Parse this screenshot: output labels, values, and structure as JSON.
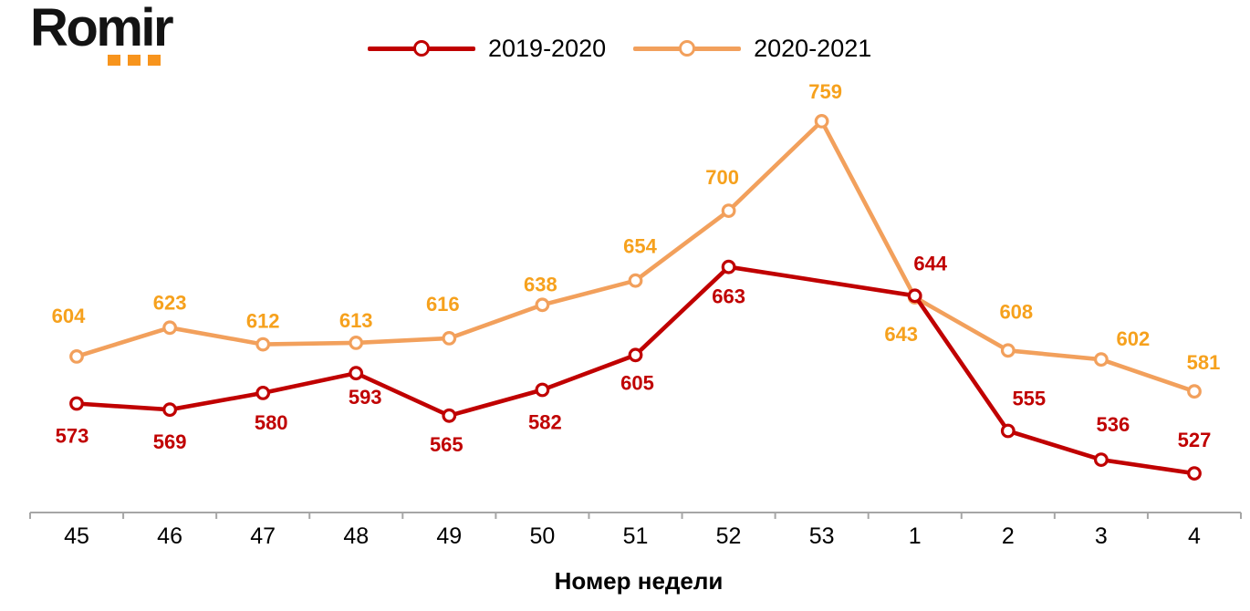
{
  "logo": {
    "text": "Romir",
    "dots_color": "#F7941D"
  },
  "legend": {
    "position": "top-center",
    "items": [
      {
        "label": "2019-2020",
        "color": "#C00000"
      },
      {
        "label": "2020-2021",
        "color": "#F2A05C"
      }
    ]
  },
  "chart_data": {
    "type": "line",
    "title": "",
    "xlabel": "Номер недели",
    "ylabel": "",
    "categories": [
      "45",
      "46",
      "47",
      "48",
      "49",
      "50",
      "51",
      "52",
      "53",
      "1",
      "2",
      "3",
      "4"
    ],
    "series": [
      {
        "name": "2019-2020",
        "color": "#C00000",
        "label_color": "#C00000",
        "marker": "open-circle",
        "values": [
          573,
          569,
          580,
          593,
          565,
          582,
          605,
          663,
          null,
          644,
          555,
          536,
          527
        ],
        "label_offsets_dx": [
          -5,
          0,
          9,
          10,
          -3,
          3,
          2,
          0,
          null,
          17,
          23,
          13,
          0
        ],
        "label_offsets_dy": [
          35,
          35,
          32,
          26,
          31,
          35,
          30,
          32,
          null,
          -36,
          -36,
          -39,
          -37
        ]
      },
      {
        "name": "2020-2021",
        "color": "#F2A05C",
        "label_color": "#F6A11D",
        "marker": "open-circle",
        "values": [
          604,
          623,
          612,
          613,
          616,
          638,
          654,
          700,
          759,
          643,
          608,
          602,
          581
        ],
        "label_offsets_dx": [
          -9,
          0,
          0,
          0,
          -7,
          -2,
          5,
          -7,
          4,
          -15,
          9,
          35,
          10
        ],
        "label_offsets_dy": [
          -45,
          -28,
          -26,
          -25,
          -38,
          -23,
          -38,
          -37,
          -33,
          40,
          -43,
          -23,
          -32
        ]
      }
    ],
    "ylim": [
      500,
      780
    ],
    "grid": false,
    "legend_position": "top-center",
    "axis_color": "#A6A6A6",
    "tick_label_color": "#000000"
  }
}
